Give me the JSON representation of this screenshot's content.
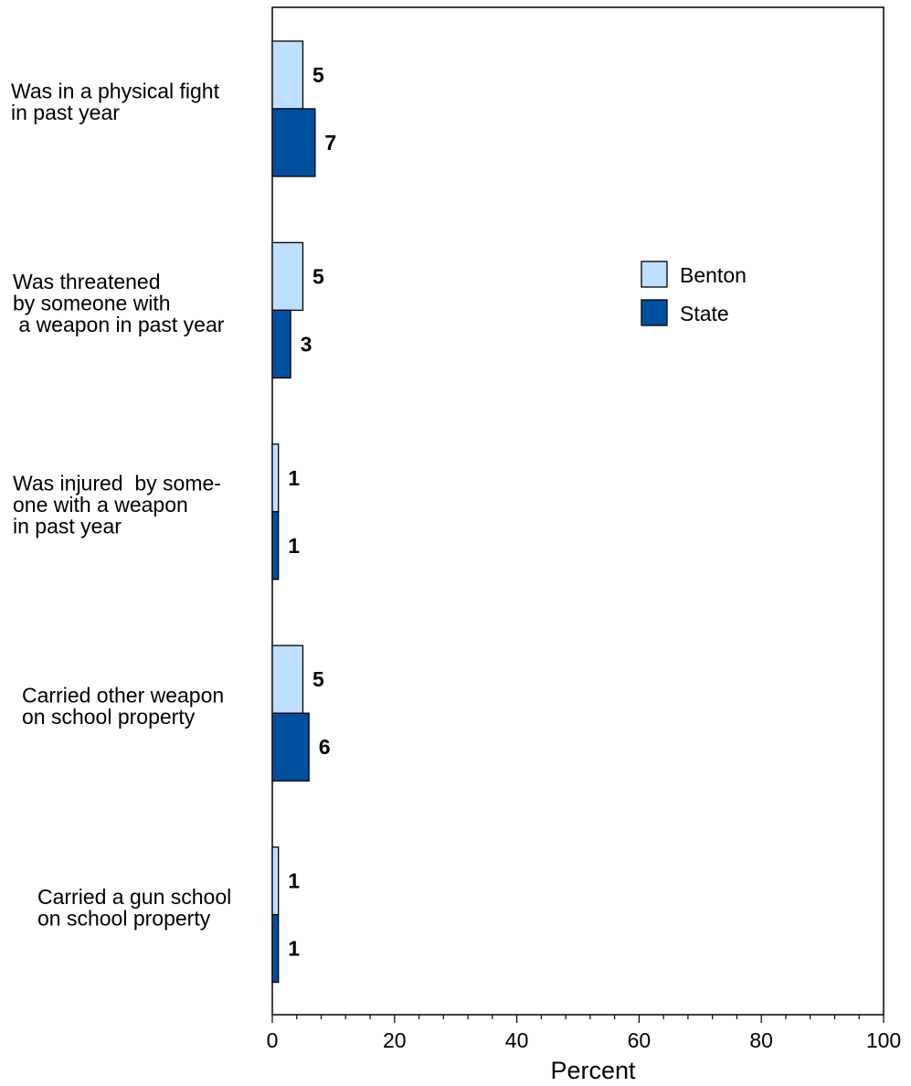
{
  "chart_data": {
    "type": "bar",
    "orientation": "horizontal",
    "categories": [
      [
        "Was in a physical fight",
        "in past year"
      ],
      [
        "Was threatened",
        "by someone with",
        " a weapon in past year"
      ],
      [
        "Was injured  by some-",
        "one with a weapon",
        "in past year"
      ],
      [
        "Carried other weapon",
        "on school property"
      ],
      [
        "Carried a gun school",
        "on school property"
      ]
    ],
    "series": [
      {
        "name": "Benton",
        "values": [
          5,
          5,
          1,
          5,
          1
        ],
        "color": "#bfdfff"
      },
      {
        "name": "State",
        "values": [
          7,
          3,
          1,
          6,
          1
        ],
        "color": "#0050a0"
      }
    ],
    "value_labels": {
      "Benton": [
        "5",
        "5",
        "1",
        "5",
        "1"
      ],
      "State": [
        "7",
        "3",
        "1",
        "6",
        "1"
      ]
    },
    "xlabel": "Percent",
    "ylabel": "",
    "xlim": [
      0,
      100
    ],
    "xticks": [
      0,
      20,
      40,
      60,
      80,
      100
    ],
    "legend_position": "right",
    "grid": false
  }
}
